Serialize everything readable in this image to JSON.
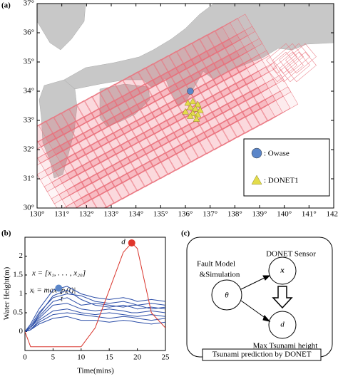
{
  "chart_data": [
    {
      "type": "map",
      "panel_label": "(a)",
      "xlim": [
        130,
        142
      ],
      "ylim": [
        30,
        37
      ],
      "xticks": [
        {
          "value": 130,
          "label": "130°"
        },
        {
          "value": 131,
          "label": "131°"
        },
        {
          "value": 132,
          "label": "132°"
        },
        {
          "value": 133,
          "label": "133°"
        },
        {
          "value": 134,
          "label": "134°"
        },
        {
          "value": 135,
          "label": "135°"
        },
        {
          "value": 136,
          "label": "136°"
        },
        {
          "value": 137,
          "label": "137°"
        },
        {
          "value": 138,
          "label": "138°"
        },
        {
          "value": 139,
          "label": "139°"
        },
        {
          "value": 140,
          "label": "140°"
        },
        {
          "value": 141,
          "label": "141°"
        },
        {
          "value": 142,
          "label": "142°"
        }
      ],
      "yticks": [
        {
          "value": 30,
          "label": "30°"
        },
        {
          "value": 31,
          "label": "31°"
        },
        {
          "value": 32,
          "label": "32°"
        },
        {
          "value": 33,
          "label": "33°"
        },
        {
          "value": 34,
          "label": "34°"
        },
        {
          "value": 35,
          "label": "35°"
        },
        {
          "value": 36,
          "label": "36°"
        },
        {
          "value": 37,
          "label": "37°"
        }
      ],
      "series": [
        {
          "name": ": Owase",
          "color": "#5b86c9",
          "marker": "circle",
          "x": [
            136.2
          ],
          "y": [
            34.0
          ]
        },
        {
          "name": ": DONET1",
          "color": "#e3dc4a",
          "marker": "triangle",
          "x": [
            136.1,
            136.3,
            136.5,
            136.2,
            136.4,
            136.6,
            136.0,
            136.3,
            136.5,
            136.2,
            136.45
          ],
          "y": [
            33.6,
            33.65,
            33.55,
            33.45,
            33.4,
            33.35,
            33.3,
            33.25,
            33.2,
            33.15,
            33.05
          ]
        }
      ]
    },
    {
      "type": "line",
      "panel_label": "(b)",
      "xlabel": "Time(mins)",
      "ylabel": "Water Height(m)",
      "xlim": [
        0,
        25
      ],
      "ylim": [
        -0.5,
        2.5
      ],
      "xticks": [
        0,
        5,
        10,
        15,
        20,
        25
      ],
      "yticks": [
        0,
        0.5,
        1,
        1.5,
        2
      ],
      "x": [
        0,
        1,
        2.5,
        5,
        7.5,
        10,
        12.5,
        15,
        17.5,
        19,
        20,
        22.5,
        25
      ],
      "series": [
        {
          "color": "#2c4ea8",
          "values": [
            0,
            0.2,
            0.6,
            1.1,
            1.2,
            1.0,
            0.9,
            0.85,
            0.9,
            0.85,
            0.8,
            0.85,
            0.8
          ]
        },
        {
          "color": "#2c4ea8",
          "values": [
            0,
            0.15,
            0.5,
            0.9,
            1.0,
            0.95,
            0.8,
            0.75,
            0.8,
            0.75,
            0.7,
            0.75,
            0.7
          ]
        },
        {
          "color": "#2c4ea8",
          "values": [
            0,
            0.1,
            0.4,
            0.8,
            0.9,
            0.7,
            0.75,
            0.7,
            0.65,
            0.7,
            0.7,
            0.6,
            0.65
          ]
        },
        {
          "color": "#2c4ea8",
          "values": [
            0,
            0.1,
            0.35,
            0.7,
            0.75,
            0.6,
            0.55,
            0.6,
            0.55,
            0.5,
            0.5,
            0.55,
            0.5
          ]
        },
        {
          "color": "#2c4ea8",
          "values": [
            0,
            0.05,
            0.3,
            0.55,
            0.6,
            0.5,
            0.45,
            0.5,
            0.45,
            0.42,
            0.4,
            0.45,
            0.4
          ]
        },
        {
          "color": "#2c4ea8",
          "values": [
            0,
            0.05,
            0.25,
            0.45,
            0.5,
            0.45,
            0.4,
            0.35,
            0.4,
            0.38,
            0.35,
            0.3,
            0.35
          ]
        },
        {
          "color": "#2c4ea8",
          "values": [
            0,
            0.1,
            0.45,
            0.95,
            1.1,
            0.85,
            0.7,
            0.65,
            0.7,
            0.65,
            0.6,
            0.65,
            0.6
          ]
        },
        {
          "color": "#2c4ea8",
          "values": [
            0,
            0.05,
            0.2,
            0.35,
            0.4,
            0.3,
            0.3,
            0.25,
            0.3,
            0.28,
            0.25,
            0.2,
            0.25
          ]
        },
        {
          "color": "#d9342b",
          "values": [
            0,
            -0.4,
            -0.4,
            -0.4,
            -0.4,
            -0.4,
            0.1,
            1.1,
            2.1,
            2.35,
            2.2,
            0.5,
            0.1
          ]
        }
      ],
      "points": [
        {
          "label": "d",
          "color": "#e0352b",
          "x": 19,
          "y": 2.35
        },
        {
          "color": "#5b86c9",
          "x": 6,
          "y": 1.15
        }
      ],
      "annotations": [
        "x = [x₁, . . . , x₂₀]",
        "xᵢ = max |pᵢ(t)|",
        "t"
      ]
    }
  ],
  "diagram": {
    "panel_label": "(c)",
    "nodes": [
      {
        "label": "θ"
      },
      {
        "label": "x"
      },
      {
        "label": "d"
      }
    ],
    "texts": [
      "DONET Sensor",
      "Fault Model",
      "&Simulation",
      "Max Tsunami height"
    ],
    "caption": "Tsunami prediction by DONET"
  }
}
